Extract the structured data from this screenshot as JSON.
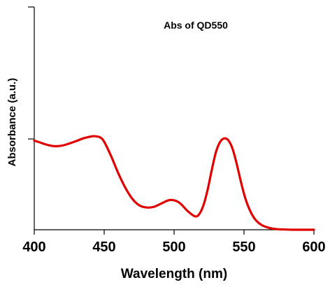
{
  "chart_data": {
    "type": "line",
    "title": "Abs of QD550",
    "xlabel": "Wavelength (nm)",
    "ylabel": "Absorbance (a.u.)",
    "xlim": [
      400,
      600
    ],
    "ylim": [
      0,
      1
    ],
    "x_ticks": [
      "400",
      "450",
      "500",
      "550",
      "600"
    ],
    "y_ticks": [],
    "grid": false,
    "legend": "none",
    "line_color": "#e00000",
    "series": [
      {
        "x": [
          400,
          405,
          410,
          415,
          420,
          425,
          430,
          435,
          440,
          443,
          447,
          450,
          455,
          460,
          465,
          470,
          475,
          480,
          485,
          490,
          495,
          498,
          502,
          505,
          510,
          515,
          518,
          521,
          524,
          527,
          530,
          533,
          536,
          539,
          542,
          545,
          548,
          551,
          554,
          557,
          560,
          563,
          566,
          569,
          572,
          575,
          580,
          585,
          590,
          595,
          600
        ],
        "y": [
          0.4,
          0.39,
          0.38,
          0.375,
          0.378,
          0.387,
          0.398,
          0.41,
          0.418,
          0.42,
          0.415,
          0.395,
          0.33,
          0.255,
          0.19,
          0.14,
          0.11,
          0.1,
          0.102,
          0.115,
          0.13,
          0.134,
          0.128,
          0.115,
          0.082,
          0.06,
          0.07,
          0.11,
          0.18,
          0.27,
          0.35,
          0.395,
          0.41,
          0.4,
          0.36,
          0.29,
          0.21,
          0.14,
          0.09,
          0.055,
          0.033,
          0.02,
          0.012,
          0.007,
          0.004,
          0.002,
          0.001,
          0.0,
          0.0,
          0.0,
          0.0
        ]
      }
    ]
  }
}
